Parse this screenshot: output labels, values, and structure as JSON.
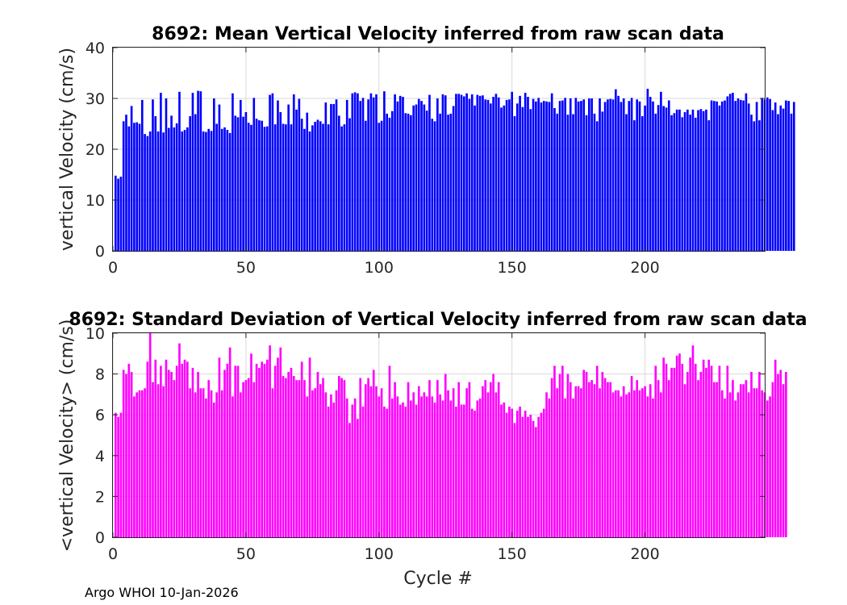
{
  "footer_text": "Argo WHOI 10-Jan-2026",
  "chart_data": [
    {
      "type": "bar",
      "title": "8692: Mean Vertical Velocity inferred from raw scan data",
      "xlabel": "",
      "ylabel": "vertical Velocity (cm/s)",
      "xlim": [
        0,
        245
      ],
      "ylim": [
        0,
        40
      ],
      "xticks": [
        0,
        50,
        100,
        150,
        200
      ],
      "yticks": [
        0,
        10,
        20,
        30,
        40
      ],
      "grid": true,
      "color": "#0000ff",
      "x_start": 1,
      "values": [
        14.8,
        14.2,
        14.6,
        25.5,
        26.8,
        24.5,
        28.5,
        25.2,
        25.3,
        25.0,
        29.7,
        23.0,
        22.6,
        23.5,
        29.8,
        26.5,
        23.5,
        31.1,
        23.3,
        30.0,
        24.2,
        26.6,
        24.3,
        25.1,
        31.3,
        23.5,
        23.8,
        24.3,
        26.5,
        31.1,
        26.9,
        31.5,
        31.4,
        23.5,
        23.4,
        24.0,
        23.6,
        30.0,
        25.0,
        28.8,
        24.0,
        24.3,
        23.8,
        23.2,
        31.0,
        26.6,
        26.3,
        29.7,
        26.4,
        27.3,
        25.2,
        24.8,
        30.1,
        26.0,
        25.7,
        25.6,
        24.4,
        24.5,
        30.7,
        31.0,
        24.9,
        29.6,
        27.3,
        25.0,
        24.9,
        28.8,
        24.9,
        30.8,
        27.8,
        29.9,
        26.0,
        24.0,
        27.2,
        23.5,
        24.7,
        25.4,
        25.8,
        25.5,
        25.0,
        29.2,
        24.9,
        28.9,
        28.9,
        29.8,
        26.6,
        24.5,
        24.9,
        29.7,
        26.1,
        31.0,
        31.2,
        31.0,
        29.5,
        30.1,
        25.6,
        29.8,
        31.0,
        30.2,
        30.8,
        25.2,
        25.6,
        31.4,
        27.0,
        26.2,
        27.5,
        30.8,
        29.4,
        30.5,
        30.3,
        27.1,
        27.0,
        26.7,
        28.6,
        28.8,
        29.9,
        29.5,
        28.8,
        27.6,
        30.7,
        26.0,
        25.5,
        30.0,
        27.0,
        30.8,
        30.6,
        26.8,
        27.0,
        28.5,
        30.9,
        30.9,
        30.7,
        30.4,
        31.0,
        29.9,
        30.8,
        28.6,
        30.7,
        30.5,
        30.6,
        29.8,
        29.7,
        29.0,
        30.3,
        30.9,
        30.2,
        28.2,
        28.6,
        29.7,
        29.8,
        31.3,
        26.5,
        29.0,
        30.5,
        28.3,
        31.1,
        30.3,
        27.9,
        29.9,
        29.4,
        30.1,
        29.2,
        29.5,
        29.4,
        29.3,
        31.0,
        28.1,
        27.0,
        29.5,
        29.6,
        30.1,
        26.8,
        30.0,
        26.9,
        30.1,
        29.4,
        29.5,
        29.8,
        26.7,
        30.0,
        30.0,
        27.0,
        25.5,
        30.0,
        27.4,
        29.3,
        29.8,
        29.9,
        29.8,
        31.8,
        30.5,
        29.3,
        30.0,
        26.9,
        29.5,
        30.1,
        25.7,
        29.8,
        29.4,
        26.5,
        28.6,
        31.9,
        30.3,
        29.4,
        27.0,
        28.7,
        31.3,
        28.5,
        28.2,
        29.6,
        26.7,
        27.1,
        27.8,
        27.8,
        26.3,
        27.3,
        27.8,
        26.8,
        27.8,
        26.2,
        27.7,
        27.9,
        27.5,
        27.8,
        25.7,
        29.6,
        29.5,
        29.4,
        28.6,
        29.4,
        29.6,
        30.4,
        30.9,
        31.1,
        29.5,
        30.0,
        29.7,
        29.6,
        31.0,
        29.0,
        26.8,
        25.5,
        29.3,
        25.7,
        30.1,
        29.8,
        30.2,
        29.9,
        27.7,
        29.2,
        26.9,
        28.6,
        28.0,
        29.6,
        29.5,
        27.0,
        29.3
      ]
    },
    {
      "type": "bar",
      "title": "8692: Standard Deviation of Vertical Velocity inferred from raw scan data",
      "xlabel": "Cycle #",
      "ylabel": "<vertical Velocity> (cm/s)",
      "xlim": [
        0,
        245
      ],
      "ylim": [
        0,
        10
      ],
      "xticks": [
        0,
        50,
        100,
        150,
        200
      ],
      "yticks": [
        0,
        2,
        4,
        6,
        8,
        10
      ],
      "grid": true,
      "color": "#ff00ff",
      "x_start": 1,
      "values": [
        6.1,
        5.9,
        6.1,
        8.2,
        8.0,
        8.5,
        8.1,
        6.9,
        7.1,
        7.2,
        7.2,
        7.3,
        8.6,
        10.0,
        7.6,
        8.7,
        7.5,
        8.4,
        7.4,
        8.7,
        8.2,
        8.1,
        7.7,
        8.4,
        9.5,
        8.5,
        8.7,
        8.6,
        7.3,
        8.3,
        7.1,
        8.1,
        7.3,
        7.3,
        6.8,
        7.7,
        7.2,
        6.6,
        7.1,
        8.8,
        7.2,
        8.2,
        8.5,
        9.3,
        6.9,
        8.4,
        8.4,
        7.1,
        7.6,
        7.7,
        7.8,
        9.0,
        7.6,
        8.5,
        8.3,
        8.6,
        8.5,
        8.7,
        9.4,
        7.3,
        8.4,
        8.8,
        9.3,
        7.9,
        7.8,
        8.1,
        8.3,
        7.9,
        7.7,
        7.7,
        8.6,
        7.7,
        6.9,
        8.8,
        7.2,
        7.3,
        8.1,
        7.5,
        7.8,
        7.1,
        6.4,
        7.0,
        6.6,
        7.2,
        7.9,
        7.8,
        7.7,
        6.8,
        5.6,
        6.5,
        6.8,
        5.8,
        7.8,
        6.4,
        7.5,
        7.8,
        7.4,
        8.2,
        7.4,
        6.9,
        7.3,
        6.4,
        6.3,
        8.4,
        6.8,
        7.6,
        6.9,
        6.5,
        6.6,
        6.4,
        7.6,
        6.7,
        7.1,
        6.5,
        7.4,
        6.9,
        7.1,
        6.9,
        7.7,
        6.9,
        6.6,
        7.7,
        7.0,
        6.7,
        8.0,
        7.2,
        6.7,
        7.3,
        6.4,
        7.6,
        6.5,
        6.5,
        7.3,
        7.6,
        6.3,
        6.2,
        6.7,
        6.8,
        7.4,
        7.7,
        7.1,
        7.6,
        8.0,
        7.1,
        7.6,
        6.5,
        6.6,
        6.1,
        6.4,
        6.3,
        5.6,
        6.2,
        6.4,
        5.9,
        6.2,
        5.9,
        6.0,
        5.7,
        5.4,
        5.9,
        6.1,
        6.3,
        7.1,
        6.8,
        7.8,
        8.4,
        7.3,
        8.0,
        8.4,
        6.8,
        8.0,
        7.6,
        6.8,
        7.4,
        7.4,
        7.3,
        8.2,
        8.1,
        7.6,
        7.7,
        7.5,
        8.4,
        7.3,
        8.1,
        7.8,
        7.6,
        7.6,
        7.1,
        7.2,
        7.2,
        6.9,
        7.4,
        7.0,
        7.1,
        7.9,
        7.2,
        7.7,
        7.2,
        7.3,
        7.4,
        6.9,
        7.5,
        6.8,
        8.4,
        7.7,
        7.1,
        8.8,
        8.5,
        7.7,
        8.3,
        8.3,
        8.9,
        9.0,
        8.5,
        7.5,
        8.1,
        8.8,
        9.4,
        8.5,
        7.7,
        8.1,
        8.7,
        8.3,
        8.7,
        8.4,
        7.6,
        7.6,
        8.4,
        7.2,
        6.8,
        8.4,
        7.1,
        7.7,
        6.7,
        7.1,
        7.5,
        7.5,
        7.7,
        7.1,
        8.1,
        7.3,
        7.3,
        8.1,
        7.2,
        7.1,
        6.7,
        6.9,
        7.6,
        8.7,
        8.0,
        8.2,
        7.5,
        8.1
      ]
    }
  ]
}
